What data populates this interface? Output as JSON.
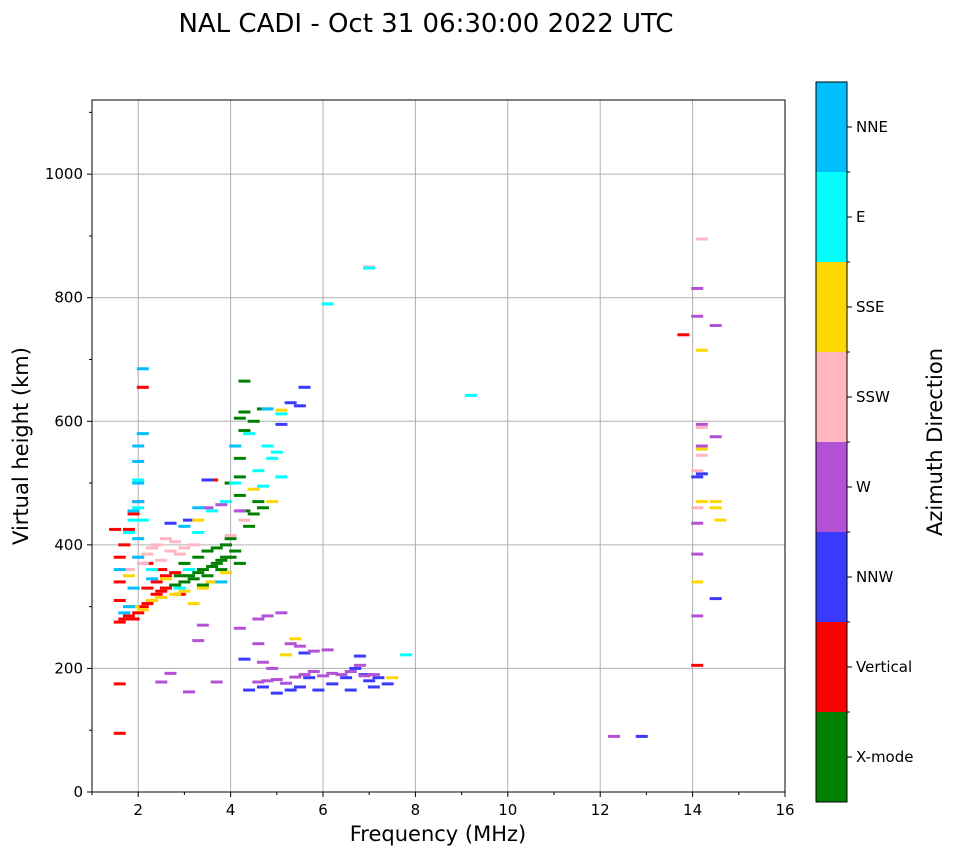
{
  "chart_data": {
    "type": "scatter",
    "title": "NAL CADI - Oct 31 06:30:00 2022 UTC",
    "xlabel": "Frequency (MHz)",
    "ylabel": "Virtual height (km)",
    "xlim": [
      1,
      16
    ],
    "ylim": [
      0,
      1120
    ],
    "xticks": [
      2,
      4,
      6,
      8,
      10,
      12,
      14,
      16
    ],
    "yticks": [
      0,
      200,
      400,
      600,
      800,
      1000
    ],
    "grid": true,
    "colorbar": {
      "label": "Azimuth Direction",
      "categories": [
        {
          "name": "X-mode",
          "color": "#008000"
        },
        {
          "name": "Vertical",
          "color": "#ff0000"
        },
        {
          "name": "NNW",
          "color": "#3a3aff"
        },
        {
          "name": "W",
          "color": "#b452d6"
        },
        {
          "name": "SSW",
          "color": "#ffb6c1"
        },
        {
          "name": "SSE",
          "color": "#ffd700"
        },
        {
          "name": "E",
          "color": "#00ffff"
        },
        {
          "name": "NNE",
          "color": "#00bfff"
        }
      ]
    },
    "series": [
      {
        "name": "X-mode",
        "points": [
          [
            2.6,
            330
          ],
          [
            2.8,
            335
          ],
          [
            3.0,
            340
          ],
          [
            3.1,
            350
          ],
          [
            3.2,
            345
          ],
          [
            3.3,
            355
          ],
          [
            3.4,
            360
          ],
          [
            3.5,
            350
          ],
          [
            3.6,
            365
          ],
          [
            3.7,
            370
          ],
          [
            3.8,
            375
          ],
          [
            3.9,
            380
          ],
          [
            3.5,
            390
          ],
          [
            3.7,
            395
          ],
          [
            3.9,
            400
          ],
          [
            4.0,
            410
          ],
          [
            4.1,
            390
          ],
          [
            4.2,
            370
          ],
          [
            4.0,
            380
          ],
          [
            3.8,
            360
          ],
          [
            3.6,
            340
          ],
          [
            3.4,
            335
          ],
          [
            4.4,
            430
          ],
          [
            4.5,
            450
          ],
          [
            4.6,
            470
          ],
          [
            4.7,
            460
          ],
          [
            4.3,
            455
          ],
          [
            4.2,
            480
          ],
          [
            4.0,
            500
          ],
          [
            4.2,
            510
          ],
          [
            4.2,
            540
          ],
          [
            4.3,
            585
          ],
          [
            4.2,
            605
          ],
          [
            4.3,
            615
          ],
          [
            4.3,
            665
          ],
          [
            4.5,
            600
          ],
          [
            4.7,
            620
          ],
          [
            3.0,
            370
          ],
          [
            3.3,
            380
          ],
          [
            2.9,
            350
          ]
        ]
      },
      {
        "name": "Vertical",
        "points": [
          [
            1.6,
            275
          ],
          [
            1.7,
            280
          ],
          [
            1.8,
            285
          ],
          [
            1.9,
            280
          ],
          [
            2.0,
            290
          ],
          [
            2.1,
            300
          ],
          [
            2.2,
            305
          ],
          [
            2.3,
            310
          ],
          [
            2.4,
            320
          ],
          [
            2.5,
            325
          ],
          [
            2.6,
            330
          ],
          [
            2.2,
            330
          ],
          [
            2.4,
            340
          ],
          [
            2.6,
            350
          ],
          [
            2.8,
            355
          ],
          [
            1.6,
            310
          ],
          [
            1.6,
            340
          ],
          [
            1.6,
            380
          ],
          [
            1.7,
            400
          ],
          [
            1.8,
            425
          ],
          [
            1.9,
            450
          ],
          [
            2.0,
            470
          ],
          [
            1.5,
            425
          ],
          [
            1.6,
            95
          ],
          [
            1.6,
            175
          ],
          [
            2.1,
            655
          ],
          [
            3.6,
            505
          ],
          [
            2.2,
            370
          ],
          [
            2.5,
            360
          ],
          [
            2.9,
            320
          ],
          [
            14.1,
            205
          ],
          [
            13.8,
            740
          ]
        ]
      },
      {
        "name": "NNW",
        "points": [
          [
            2.7,
            435
          ],
          [
            3.1,
            440
          ],
          [
            3.5,
            505
          ],
          [
            4.3,
            215
          ],
          [
            4.4,
            165
          ],
          [
            4.7,
            170
          ],
          [
            5.0,
            160
          ],
          [
            5.3,
            165
          ],
          [
            5.5,
            170
          ],
          [
            5.7,
            185
          ],
          [
            5.9,
            165
          ],
          [
            6.2,
            175
          ],
          [
            6.5,
            185
          ],
          [
            6.7,
            200
          ],
          [
            6.8,
            220
          ],
          [
            6.9,
            190
          ],
          [
            7.0,
            180
          ],
          [
            7.2,
            185
          ],
          [
            7.4,
            175
          ],
          [
            6.6,
            165
          ],
          [
            7.1,
            170
          ],
          [
            5.6,
            225
          ],
          [
            5.1,
            595
          ],
          [
            5.3,
            630
          ],
          [
            5.5,
            625
          ],
          [
            5.6,
            655
          ],
          [
            14.5,
            313
          ],
          [
            12.9,
            90
          ],
          [
            14.1,
            510
          ],
          [
            14.2,
            515
          ]
        ]
      },
      {
        "name": "W",
        "points": [
          [
            4.6,
            178
          ],
          [
            4.8,
            180
          ],
          [
            5.0,
            182
          ],
          [
            5.2,
            176
          ],
          [
            5.4,
            186
          ],
          [
            5.6,
            190
          ],
          [
            5.8,
            195
          ],
          [
            6.0,
            188
          ],
          [
            6.2,
            192
          ],
          [
            6.4,
            190
          ],
          [
            6.6,
            195
          ],
          [
            6.8,
            205
          ],
          [
            6.9,
            188
          ],
          [
            7.1,
            190
          ],
          [
            5.3,
            240
          ],
          [
            5.5,
            236
          ],
          [
            5.8,
            228
          ],
          [
            6.1,
            230
          ],
          [
            4.6,
            240
          ],
          [
            4.2,
            265
          ],
          [
            4.6,
            280
          ],
          [
            4.8,
            285
          ],
          [
            5.1,
            290
          ],
          [
            4.7,
            210
          ],
          [
            4.9,
            200
          ],
          [
            3.4,
            270
          ],
          [
            3.3,
            245
          ],
          [
            3.7,
            178
          ],
          [
            2.7,
            192
          ],
          [
            2.5,
            178
          ],
          [
            3.1,
            162
          ],
          [
            3.5,
            460
          ],
          [
            3.8,
            465
          ],
          [
            4.2,
            455
          ],
          [
            12.3,
            90
          ],
          [
            14.1,
            385
          ],
          [
            14.1,
            285
          ],
          [
            14.1,
            435
          ],
          [
            14.2,
            560
          ],
          [
            14.2,
            595
          ],
          [
            14.5,
            575
          ],
          [
            14.5,
            755
          ],
          [
            14.1,
            770
          ],
          [
            14.1,
            815
          ]
        ]
      },
      {
        "name": "SSW",
        "points": [
          [
            2.0,
            380
          ],
          [
            2.2,
            385
          ],
          [
            2.3,
            395
          ],
          [
            2.4,
            400
          ],
          [
            2.6,
            410
          ],
          [
            2.8,
            405
          ],
          [
            3.0,
            395
          ],
          [
            3.2,
            400
          ],
          [
            2.9,
            385
          ],
          [
            2.7,
            390
          ],
          [
            1.8,
            360
          ],
          [
            2.1,
            370
          ],
          [
            2.5,
            375
          ],
          [
            4.0,
            415
          ],
          [
            4.3,
            440
          ],
          [
            14.1,
            460
          ],
          [
            14.1,
            520
          ],
          [
            14.2,
            545
          ],
          [
            14.2,
            590
          ],
          [
            14.2,
            895
          ],
          [
            7.0,
            850
          ]
        ]
      },
      {
        "name": "SSE",
        "points": [
          [
            1.9,
            300
          ],
          [
            2.1,
            295
          ],
          [
            2.3,
            310
          ],
          [
            2.5,
            315
          ],
          [
            2.8,
            320
          ],
          [
            3.0,
            325
          ],
          [
            3.2,
            305
          ],
          [
            3.4,
            330
          ],
          [
            3.6,
            340
          ],
          [
            3.9,
            355
          ],
          [
            2.6,
            345
          ],
          [
            4.5,
            490
          ],
          [
            4.9,
            470
          ],
          [
            5.1,
            618
          ],
          [
            5.2,
            222
          ],
          [
            5.4,
            248
          ],
          [
            7.5,
            185
          ],
          [
            14.2,
            470
          ],
          [
            14.5,
            470
          ],
          [
            14.5,
            460
          ],
          [
            14.6,
            440
          ],
          [
            14.1,
            340
          ],
          [
            14.2,
            555
          ],
          [
            14.2,
            715
          ],
          [
            1.8,
            350
          ],
          [
            3.3,
            440
          ]
        ]
      },
      {
        "name": "E",
        "points": [
          [
            1.8,
            420
          ],
          [
            1.9,
            440
          ],
          [
            2.0,
            460
          ],
          [
            2.0,
            505
          ],
          [
            2.1,
            440
          ],
          [
            2.9,
            330
          ],
          [
            3.1,
            360
          ],
          [
            3.3,
            420
          ],
          [
            3.6,
            455
          ],
          [
            3.9,
            470
          ],
          [
            4.1,
            500
          ],
          [
            4.8,
            560
          ],
          [
            4.9,
            540
          ],
          [
            5.0,
            550
          ],
          [
            5.1,
            510
          ],
          [
            4.7,
            495
          ],
          [
            4.6,
            520
          ],
          [
            5.1,
            612
          ],
          [
            6.1,
            790
          ],
          [
            7.0,
            848
          ],
          [
            9.2,
            642
          ],
          [
            7.8,
            222
          ],
          [
            2.3,
            360
          ],
          [
            4.4,
            580
          ]
        ]
      },
      {
        "name": "NNE",
        "points": [
          [
            1.8,
            300
          ],
          [
            1.9,
            330
          ],
          [
            2.0,
            380
          ],
          [
            2.0,
            410
          ],
          [
            2.0,
            470
          ],
          [
            2.0,
            500
          ],
          [
            2.0,
            535
          ],
          [
            2.0,
            560
          ],
          [
            2.1,
            580
          ],
          [
            2.1,
            685
          ],
          [
            1.7,
            290
          ],
          [
            1.6,
            360
          ],
          [
            2.3,
            345
          ],
          [
            3.0,
            430
          ],
          [
            3.3,
            460
          ],
          [
            3.8,
            340
          ],
          [
            4.1,
            560
          ],
          [
            4.8,
            620
          ],
          [
            1.9,
            455
          ]
        ]
      }
    ]
  }
}
